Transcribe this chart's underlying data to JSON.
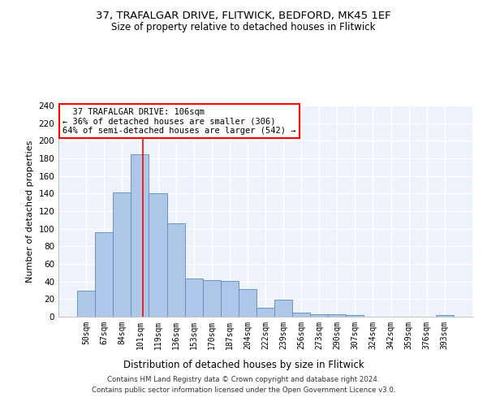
{
  "title_line1": "37, TRAFALGAR DRIVE, FLITWICK, BEDFORD, MK45 1EF",
  "title_line2": "Size of property relative to detached houses in Flitwick",
  "xlabel": "Distribution of detached houses by size in Flitwick",
  "ylabel": "Number of detached properties",
  "categories": [
    "50sqm",
    "67sqm",
    "84sqm",
    "101sqm",
    "119sqm",
    "136sqm",
    "153sqm",
    "170sqm",
    "187sqm",
    "204sqm",
    "222sqm",
    "239sqm",
    "256sqm",
    "273sqm",
    "290sqm",
    "307sqm",
    "324sqm",
    "342sqm",
    "359sqm",
    "376sqm",
    "393sqm"
  ],
  "values": [
    30,
    96,
    141,
    185,
    140,
    106,
    43,
    42,
    41,
    31,
    10,
    19,
    5,
    3,
    3,
    2,
    0,
    0,
    0,
    0,
    2
  ],
  "bar_color": "#aec6e8",
  "bar_edge_color": "#5b8db8",
  "background_color": "#eef2fb",
  "grid_color": "#ffffff",
  "red_line_x": 3.15,
  "annotation_text": "  37 TRAFALGAR DRIVE: 106sqm  \n← 36% of detached houses are smaller (306)\n64% of semi-detached houses are larger (542) →",
  "annotation_box_color": "white",
  "annotation_box_edge": "red",
  "ylim": [
    0,
    240
  ],
  "yticks": [
    0,
    20,
    40,
    60,
    80,
    100,
    120,
    140,
    160,
    180,
    200,
    220,
    240
  ],
  "footer_line1": "Contains HM Land Registry data © Crown copyright and database right 2024.",
  "footer_line2": "Contains public sector information licensed under the Open Government Licence v3.0."
}
